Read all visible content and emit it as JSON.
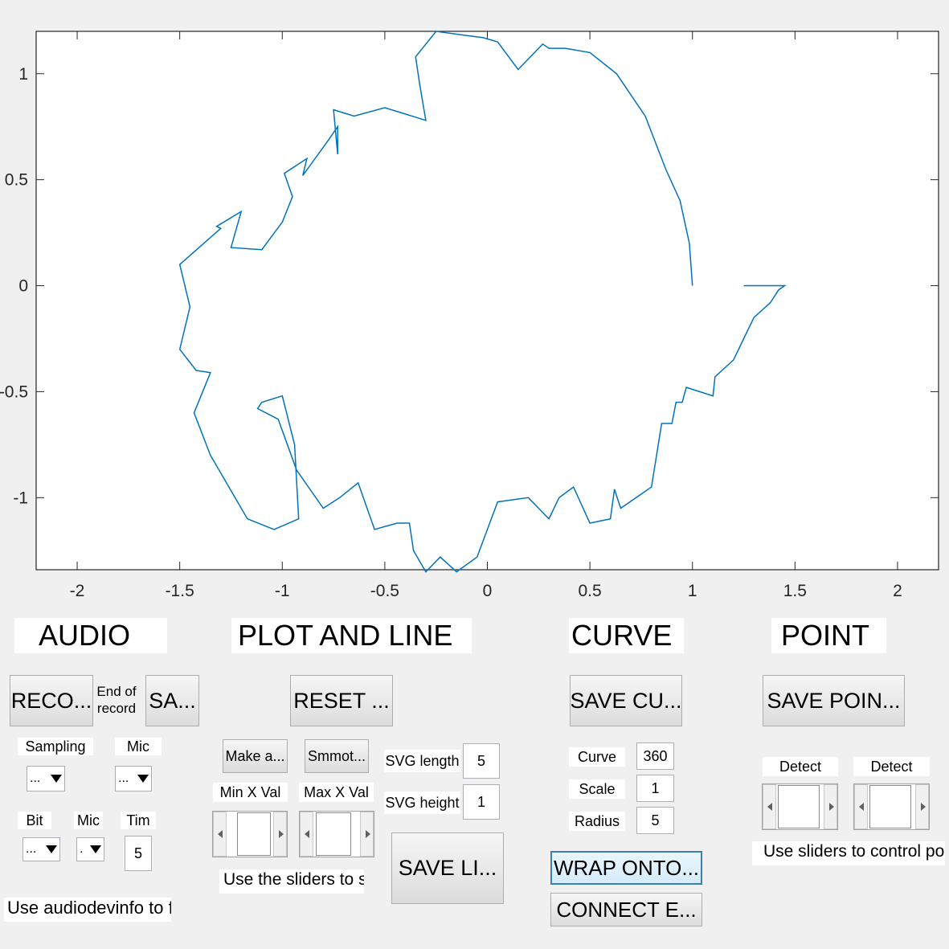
{
  "chart_data": {
    "type": "line",
    "title": "",
    "xlabel": "",
    "ylabel": "",
    "xlim": [
      -2.2,
      2.2
    ],
    "ylim": [
      -1.34,
      1.2
    ],
    "xticks": [
      -2,
      -1.5,
      -1,
      -0.5,
      0,
      0.5,
      1,
      1.5,
      2
    ],
    "yticks": [
      -1,
      -0.5,
      0,
      0.5,
      1
    ],
    "xtick_labels": [
      "-2",
      "-1.5",
      "-1",
      "-0.5",
      "0",
      "0.5",
      "1",
      "1.5",
      "2"
    ],
    "ytick_labels": [
      "-1",
      "-0.5",
      "0",
      "0.5",
      "1"
    ],
    "grid": false,
    "line_color": "#0072BD",
    "series": [
      {
        "x": [
          1,
          0.985,
          0.94,
          0.87,
          0.77,
          0.63,
          0.5,
          0.38,
          0.3,
          0.27,
          0.15,
          0.05,
          -0.02,
          -0.1,
          -0.25,
          -0.35,
          -0.33,
          -0.3,
          -0.5,
          -0.65,
          -0.75,
          -0.73,
          -0.73,
          -0.78,
          -0.9,
          -0.88,
          -0.99,
          -0.95,
          -1.0,
          -1.1,
          -1.25,
          -1.2,
          -1.32,
          -1.3,
          -1.5,
          -1.45,
          -1.5,
          -1.42,
          -1.35,
          -1.43,
          -1.35,
          -1.17,
          -1.04,
          -0.92,
          -0.94,
          -1.0,
          -1.1,
          -1.12,
          -1.02,
          -0.93,
          -0.8,
          -0.72,
          -0.63,
          -0.55,
          -0.44,
          -0.38,
          -0.36,
          -0.3,
          -0.23,
          -0.15,
          -0.05,
          0.05,
          0.2,
          0.3,
          0.35,
          0.42,
          0.5,
          0.6,
          0.62,
          0.65,
          0.8,
          0.82,
          0.85,
          0.9,
          0.92,
          0.95,
          0.97,
          1.1,
          1.11,
          1.2,
          1.25,
          1.3,
          1.38,
          1.42,
          1.45,
          1.25
        ],
        "y": [
          0,
          0.2,
          0.4,
          0.55,
          0.8,
          1.0,
          1.1,
          1.12,
          1.12,
          1.14,
          1.02,
          1.15,
          1.17,
          1.18,
          1.2,
          1.08,
          0.95,
          0.78,
          0.84,
          0.8,
          0.83,
          0.62,
          0.75,
          0.68,
          0.52,
          0.6,
          0.53,
          0.42,
          0.3,
          0.17,
          0.18,
          0.35,
          0.28,
          0.27,
          0.1,
          -0.1,
          -0.3,
          -0.4,
          -0.41,
          -0.6,
          -0.8,
          -1.1,
          -1.15,
          -1.1,
          -0.75,
          -0.52,
          -0.55,
          -0.58,
          -0.63,
          -0.87,
          -1.05,
          -1.0,
          -0.93,
          -1.15,
          -1.12,
          -1.12,
          -1.25,
          -1.35,
          -1.28,
          -1.35,
          -1.28,
          -1.02,
          -1.0,
          -1.1,
          -1.0,
          -0.95,
          -1.12,
          -1.1,
          -0.96,
          -1.05,
          -0.95,
          -0.83,
          -0.65,
          -0.65,
          -0.55,
          -0.55,
          -0.48,
          -0.52,
          -0.43,
          -0.35,
          -0.25,
          -0.15,
          -0.08,
          -0.02,
          0.0,
          0.0
        ]
      }
    ]
  },
  "sections": {
    "audio": "AUDIO",
    "plot_line": "PLOT AND LINE",
    "curve": "CURVE",
    "point": "POINT"
  },
  "audio": {
    "record_button": "RECO...",
    "end_of_record": "End of record ...",
    "save_button": "SA...",
    "sampling_label": "Sampling",
    "mic_label_1": "Mic",
    "sampling_value": "...",
    "mic_value_1": "...",
    "bit_label": "Bit",
    "mic_label_2": "Mic",
    "time_label": "Tim",
    "bit_value": "...",
    "mic_value_2": ".",
    "time_value": "5",
    "hint": "Use audiodevinfo to find correct ID"
  },
  "plot_line": {
    "reset_button": "RESET ...",
    "make_button": "Make a...",
    "smooth_button": "Smmot...",
    "min_x_label": "Min X Val",
    "max_x_label": "Max X Val",
    "svg_length_label": "SVG length",
    "svg_length_value": "5",
    "svg_height_label": "SVG height",
    "svg_height_value": "1",
    "save_line_button": "SAVE LI...",
    "hint": "Use the sliders to select data"
  },
  "curve": {
    "save_button": "SAVE CU...",
    "curve_label": "Curve",
    "curve_value": "360",
    "scale_label": "Scale",
    "scale_value": "1",
    "radius_label": "Radius",
    "radius_value": "5",
    "wrap_button": "WRAP ONTO...",
    "connect_button": "CONNECT E..."
  },
  "point": {
    "save_button": "SAVE POIN...",
    "detect_label_1": "Detect",
    "detect_label_2": "Detect",
    "hint": "Use sliders to control point detection"
  }
}
